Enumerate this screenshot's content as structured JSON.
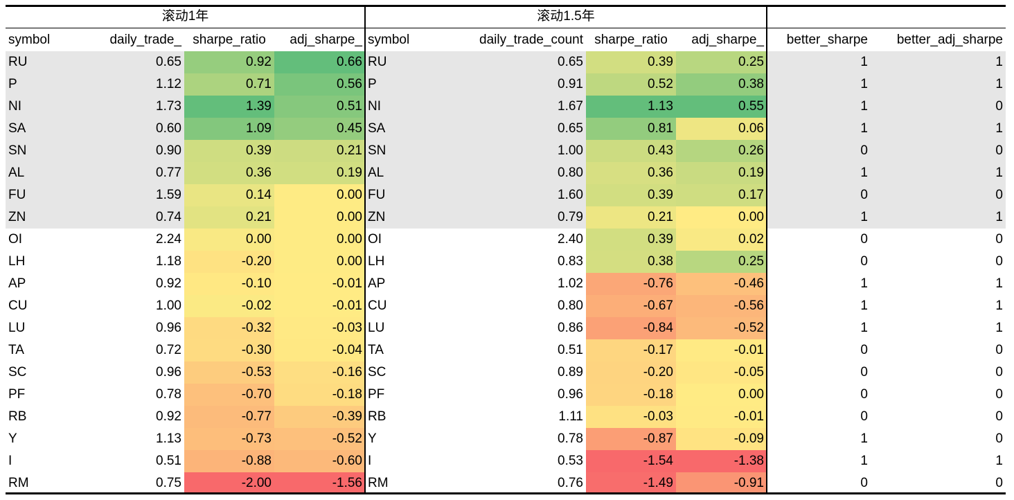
{
  "groups": [
    "滚动1年",
    "滚动1.5年"
  ],
  "table": {
    "header": [
      "symbol",
      "daily_trade_",
      "sharpe_ratio",
      "adj_sharpe_",
      "symbol",
      "daily_trade_count",
      "sharpe_ratio",
      "adj_sharpe_",
      "better_sharpe",
      "better_adj_sharpe"
    ],
    "rows": [
      [
        "RU",
        "0.65",
        "0.92",
        "0.66",
        "RU",
        "0.65",
        "0.39",
        "0.25",
        "1",
        "1"
      ],
      [
        "P",
        "1.12",
        "0.71",
        "0.56",
        "P",
        "0.91",
        "0.52",
        "0.38",
        "1",
        "1"
      ],
      [
        "NI",
        "1.73",
        "1.39",
        "0.51",
        "NI",
        "1.67",
        "1.13",
        "0.55",
        "1",
        "0"
      ],
      [
        "SA",
        "0.60",
        "1.09",
        "0.45",
        "SA",
        "0.65",
        "0.81",
        "0.06",
        "1",
        "1"
      ],
      [
        "SN",
        "0.90",
        "0.39",
        "0.21",
        "SN",
        "1.00",
        "0.43",
        "0.26",
        "0",
        "0"
      ],
      [
        "AL",
        "0.77",
        "0.36",
        "0.19",
        "AL",
        "0.80",
        "0.36",
        "0.19",
        "1",
        "1"
      ],
      [
        "FU",
        "1.59",
        "0.14",
        "0.00",
        "FU",
        "1.60",
        "0.39",
        "0.17",
        "0",
        "0"
      ],
      [
        "ZN",
        "0.74",
        "0.21",
        "0.00",
        "ZN",
        "0.79",
        "0.21",
        "0.00",
        "1",
        "1"
      ],
      [
        "OI",
        "2.24",
        "0.00",
        "0.00",
        "OI",
        "2.40",
        "0.39",
        "0.02",
        "0",
        "0"
      ],
      [
        "LH",
        "1.18",
        "-0.20",
        "0.00",
        "LH",
        "0.83",
        "0.38",
        "0.25",
        "0",
        "0"
      ],
      [
        "AP",
        "0.92",
        "-0.10",
        "-0.01",
        "AP",
        "1.02",
        "-0.76",
        "-0.46",
        "1",
        "1"
      ],
      [
        "CU",
        "1.00",
        "-0.02",
        "-0.01",
        "CU",
        "0.80",
        "-0.67",
        "-0.56",
        "1",
        "1"
      ],
      [
        "LU",
        "0.96",
        "-0.32",
        "-0.03",
        "LU",
        "0.86",
        "-0.84",
        "-0.52",
        "1",
        "1"
      ],
      [
        "TA",
        "0.72",
        "-0.30",
        "-0.04",
        "TA",
        "0.51",
        "-0.17",
        "-0.01",
        "0",
        "0"
      ],
      [
        "SC",
        "0.96",
        "-0.53",
        "-0.16",
        "SC",
        "0.89",
        "-0.20",
        "-0.05",
        "0",
        "0"
      ],
      [
        "PF",
        "0.78",
        "-0.70",
        "-0.18",
        "PF",
        "0.96",
        "-0.18",
        "0.00",
        "0",
        "0"
      ],
      [
        "RB",
        "0.92",
        "-0.77",
        "-0.39",
        "RB",
        "1.11",
        "-0.03",
        "-0.01",
        "0",
        "0"
      ],
      [
        "Y",
        "1.13",
        "-0.73",
        "-0.52",
        "Y",
        "0.78",
        "-0.87",
        "-0.09",
        "1",
        "0"
      ],
      [
        "I",
        "0.51",
        "-0.88",
        "-0.60",
        "I",
        "0.53",
        "-1.54",
        "-1.38",
        "1",
        "1"
      ],
      [
        "RM",
        "0.75",
        "-2.00",
        "-1.56",
        "RM",
        "0.76",
        "-1.49",
        "-0.91",
        "0",
        "0"
      ]
    ]
  }
}
